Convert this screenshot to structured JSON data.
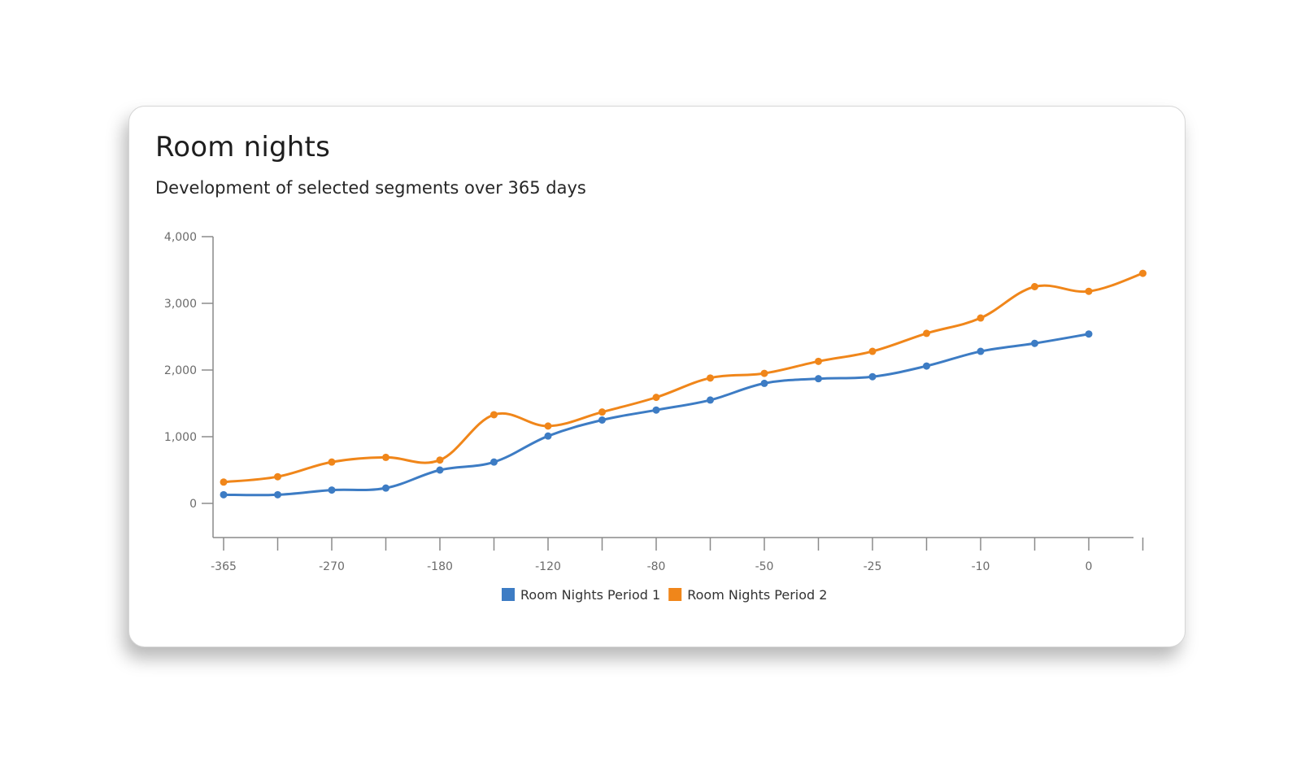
{
  "card": {
    "title": "Room nights",
    "subtitle": "Development of selected segments over 365 days"
  },
  "chart_data": {
    "type": "line",
    "title": "Room nights",
    "subtitle": "Development of selected segments over 365 days",
    "xlabel": "",
    "ylabel": "",
    "categories": [
      "-365",
      "",
      "-270",
      "",
      "-180",
      "",
      "-120",
      "",
      "-80",
      "",
      "-50",
      "",
      "-25",
      "",
      "-10",
      "",
      "0",
      ""
    ],
    "y_ticks": [
      "0",
      "1,000",
      "2,000",
      "3,000",
      "4,000"
    ],
    "y_tick_values": [
      0,
      1000,
      2000,
      3000,
      4000
    ],
    "ylim": [
      -520,
      4000
    ],
    "grid": false,
    "legend_position": "bottom-center",
    "series": [
      {
        "name": "Room Nights Period 1",
        "color": "#3d7cc4",
        "values": [
          130,
          130,
          200,
          230,
          500,
          620,
          1010,
          1250,
          1400,
          1550,
          1800,
          1870,
          1900,
          2060,
          2280,
          2400,
          2540,
          null
        ]
      },
      {
        "name": "Room Nights Period 2",
        "color": "#f0861a",
        "values": [
          320,
          400,
          620,
          690,
          650,
          1330,
          1160,
          1370,
          1590,
          1880,
          1950,
          2130,
          2280,
          2550,
          2780,
          3250,
          3180,
          3450
        ]
      }
    ]
  }
}
